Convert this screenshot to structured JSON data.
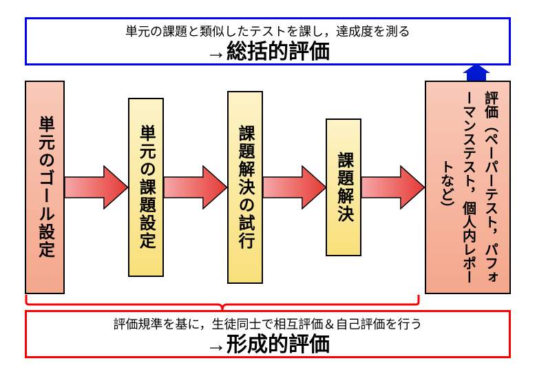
{
  "topBox": {
    "sub": "単元の課題と類似したテストを課し，達成度を測る",
    "main": "→総括的評価",
    "borderColor": "#0000ff"
  },
  "bottomBox": {
    "sub": "評価規準を基に，生徒同士で相互評価＆自己評価を行う",
    "main": "→形成的評価",
    "borderColor": "#ff0000"
  },
  "boxes": [
    {
      "label": "単元のゴール設定",
      "g1": "#f9c9b8",
      "g2": "#f4a78b"
    },
    {
      "label": "単元の課題設定",
      "g1": "#fdf3c8",
      "g2": "#f8e07a"
    },
    {
      "label": "課題解決の試行",
      "g1": "#fdf3c8",
      "g2": "#f8e07a"
    },
    {
      "label": "課題解決",
      "g1": "#fdf3c8",
      "g2": "#f8e07a"
    },
    {
      "label": "評価（ペーパーテスト，パフォーマンステスト，個人内レポートなど）",
      "g1": "#f9c9b8",
      "g2": "#f4a78b"
    }
  ],
  "arrowH": {
    "g1": "#f7a8a8",
    "g2": "#e53935",
    "stroke": "#000000"
  },
  "upArrow": {
    "fill": "#0018d0"
  },
  "bracket": {
    "color": "#ff0000"
  }
}
